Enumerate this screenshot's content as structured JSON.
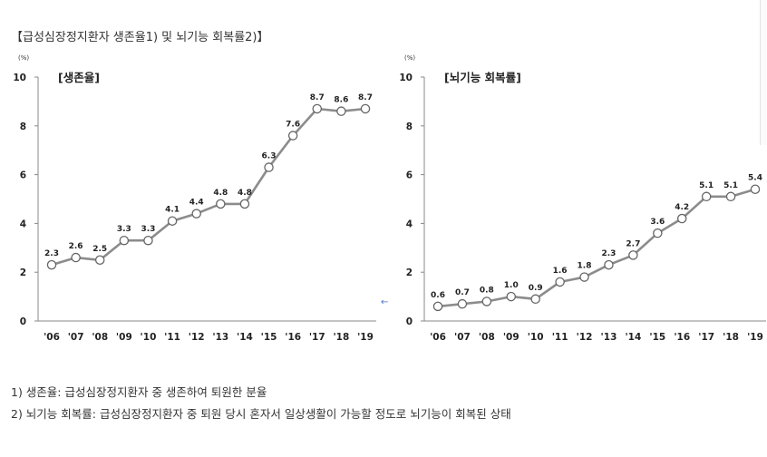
{
  "title": "【급성심장정지환자 생존율1) 및 뇌기능 회복률2)】",
  "footnotes": [
    "1) 생존율: 급성심장정지환자 중 생존하여 퇴원한 분율",
    "2) 뇌기능 회복률: 급성심장정지환자 중 퇴원 당시 혼자서 일상생활이 가능할 정도로 뇌기능이 회복된 상태"
  ],
  "colors": {
    "line": "#8c8c8c",
    "marker_fill": "#ffffff",
    "marker_stroke": "#666666",
    "axis": "#888888"
  },
  "chart_data": [
    {
      "type": "line",
      "title": "[생존율]",
      "unit": "(%)",
      "categories": [
        "'06",
        "'07",
        "'08",
        "'09",
        "'10",
        "'11",
        "'12",
        "'13",
        "'14",
        "'15",
        "'16",
        "'17",
        "'18",
        "'19"
      ],
      "values": [
        2.3,
        2.6,
        2.5,
        3.3,
        3.3,
        4.1,
        4.4,
        4.8,
        4.8,
        6.3,
        7.6,
        8.7,
        8.6,
        8.7
      ],
      "ylim": [
        0,
        10
      ],
      "yticks": [
        0,
        2,
        4,
        6,
        8,
        10
      ],
      "grid": false,
      "legend": "none"
    },
    {
      "type": "line",
      "title": "[뇌기능 회복률]",
      "unit": "(%)",
      "categories": [
        "'06",
        "'07",
        "'08",
        "'09",
        "'10",
        "'11",
        "'12",
        "'13",
        "'14",
        "'15",
        "'16",
        "'17",
        "'18",
        "'19"
      ],
      "values": [
        0.6,
        0.7,
        0.8,
        1.0,
        0.9,
        1.6,
        1.8,
        2.3,
        2.7,
        3.6,
        4.2,
        5.1,
        5.1,
        5.4
      ],
      "ylim": [
        0,
        10
      ],
      "yticks": [
        0,
        2,
        4,
        6,
        8,
        10
      ],
      "grid": false,
      "legend": "none"
    }
  ]
}
